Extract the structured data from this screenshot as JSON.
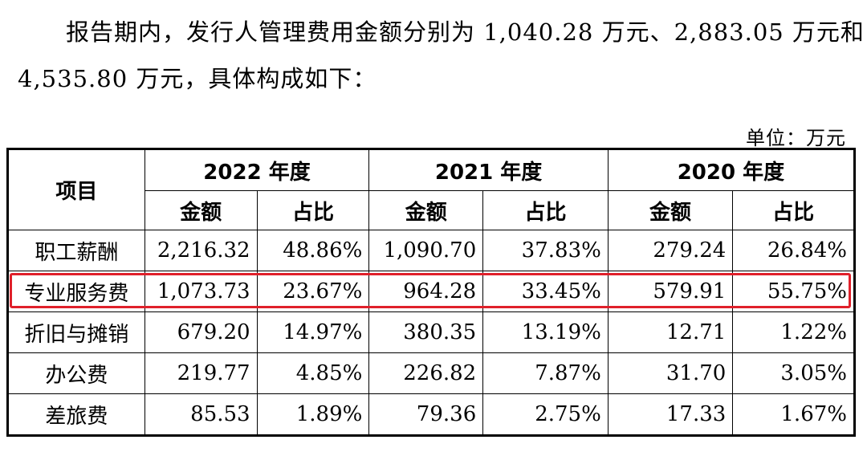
{
  "paragraph": {
    "line1": "报告期内，发行人管理费用金额分别为 1,040.28 万元、2,883.05 万元和",
    "line2": "4,535.80 万元，具体构成如下："
  },
  "unit_label": "单位：万元",
  "table": {
    "item_header": "项目",
    "years": [
      "2022 年度",
      "2021 年度",
      "2020 年度"
    ],
    "sub_headers": [
      "金额",
      "占比",
      "金额",
      "占比",
      "金额",
      "占比"
    ],
    "rows": [
      {
        "item": "职工薪酬",
        "values": [
          "2,216.32",
          "48.86%",
          "1,090.70",
          "37.83%",
          "279.24",
          "26.84%"
        ]
      },
      {
        "item": "专业服务费",
        "values": [
          "1,073.73",
          "23.67%",
          "964.28",
          "33.45%",
          "579.91",
          "55.75%"
        ],
        "highlighted": true
      },
      {
        "item": "折旧与摊销",
        "values": [
          "679.20",
          "14.97%",
          "380.35",
          "13.19%",
          "12.71",
          "1.22%"
        ]
      },
      {
        "item": "办公费",
        "values": [
          "219.77",
          "4.85%",
          "226.82",
          "7.87%",
          "31.70",
          "3.05%"
        ]
      },
      {
        "item": "差旅费",
        "values": [
          "85.53",
          "1.89%",
          "79.36",
          "2.75%",
          "17.33",
          "1.67%"
        ]
      }
    ]
  },
  "colors": {
    "highlight_border": "#e0202a"
  }
}
